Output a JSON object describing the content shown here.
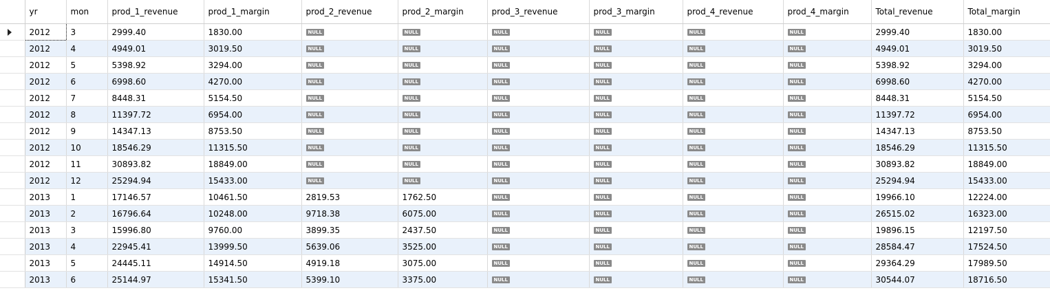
{
  "columns": [
    "yr",
    "mon",
    "prod_1_revenue",
    "prod_1_margin",
    "prod_2_revenue",
    "prod_2_margin",
    "prod_3_revenue",
    "prod_3_margin",
    "prod_4_revenue",
    "prod_4_margin",
    "Total_revenue",
    "Total_margin"
  ],
  "null_label": "NULL",
  "rows": [
    [
      "2012",
      "3",
      "2999.40",
      "1830.00",
      null,
      null,
      null,
      null,
      null,
      null,
      "2999.40",
      "1830.00"
    ],
    [
      "2012",
      "4",
      "4949.01",
      "3019.50",
      null,
      null,
      null,
      null,
      null,
      null,
      "4949.01",
      "3019.50"
    ],
    [
      "2012",
      "5",
      "5398.92",
      "3294.00",
      null,
      null,
      null,
      null,
      null,
      null,
      "5398.92",
      "3294.00"
    ],
    [
      "2012",
      "6",
      "6998.60",
      "4270.00",
      null,
      null,
      null,
      null,
      null,
      null,
      "6998.60",
      "4270.00"
    ],
    [
      "2012",
      "7",
      "8448.31",
      "5154.50",
      null,
      null,
      null,
      null,
      null,
      null,
      "8448.31",
      "5154.50"
    ],
    [
      "2012",
      "8",
      "11397.72",
      "6954.00",
      null,
      null,
      null,
      null,
      null,
      null,
      "11397.72",
      "6954.00"
    ],
    [
      "2012",
      "9",
      "14347.13",
      "8753.50",
      null,
      null,
      null,
      null,
      null,
      null,
      "14347.13",
      "8753.50"
    ],
    [
      "2012",
      "10",
      "18546.29",
      "11315.50",
      null,
      null,
      null,
      null,
      null,
      null,
      "18546.29",
      "11315.50"
    ],
    [
      "2012",
      "11",
      "30893.82",
      "18849.00",
      null,
      null,
      null,
      null,
      null,
      null,
      "30893.82",
      "18849.00"
    ],
    [
      "2012",
      "12",
      "25294.94",
      "15433.00",
      null,
      null,
      null,
      null,
      null,
      null,
      "25294.94",
      "15433.00"
    ],
    [
      "2013",
      "1",
      "17146.57",
      "10461.50",
      "2819.53",
      "1762.50",
      null,
      null,
      null,
      null,
      "19966.10",
      "12224.00"
    ],
    [
      "2013",
      "2",
      "16796.64",
      "10248.00",
      "9718.38",
      "6075.00",
      null,
      null,
      null,
      null,
      "26515.02",
      "16323.00"
    ],
    [
      "2013",
      "3",
      "15996.80",
      "9760.00",
      "3899.35",
      "2437.50",
      null,
      null,
      null,
      null,
      "19896.15",
      "12197.50"
    ],
    [
      "2013",
      "4",
      "22945.41",
      "13999.50",
      "5639.06",
      "3525.00",
      null,
      null,
      null,
      null,
      "28584.47",
      "17524.50"
    ],
    [
      "2013",
      "5",
      "24445.11",
      "14914.50",
      "4919.18",
      "3075.00",
      null,
      null,
      null,
      null,
      "29364.29",
      "17989.50"
    ],
    [
      "2013",
      "6",
      "25144.97",
      "15341.50",
      "5399.10",
      "3375.00",
      null,
      null,
      null,
      null,
      "30544.07",
      "18716.50"
    ]
  ]
}
